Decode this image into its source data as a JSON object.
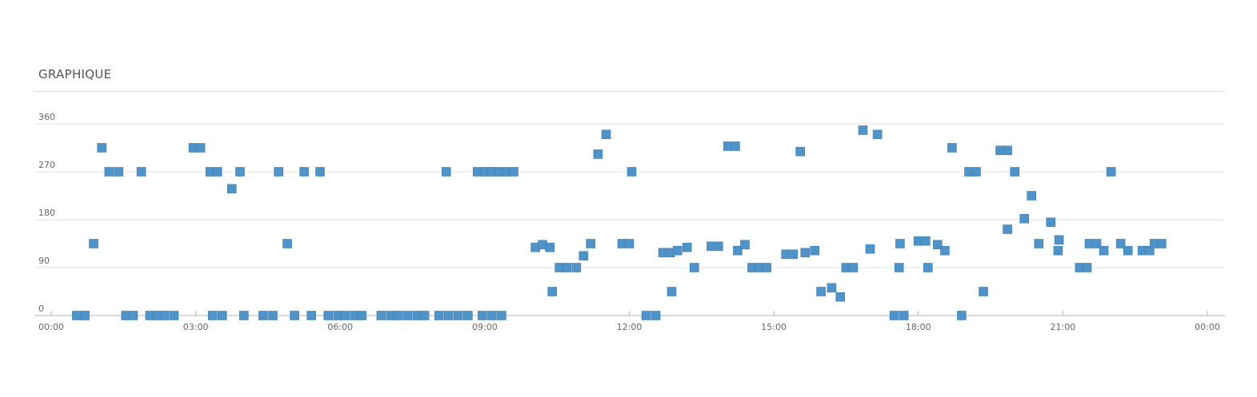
{
  "panel": {
    "title": "GRAPHIQUE"
  },
  "colors": {
    "marker": "#4f93c8",
    "marker_edge": "#3e7fb3",
    "grid": "#e1e1e1",
    "axis": "#b5b5b5"
  },
  "chart_data": {
    "type": "scatter",
    "title": "GRAPHIQUE",
    "xlabel": "",
    "ylabel": "",
    "x_unit": "hours",
    "xlim": [
      0,
      24
    ],
    "ylim": [
      0,
      360
    ],
    "x_ticks": [
      0,
      3,
      6,
      9,
      12,
      15,
      18,
      21,
      24
    ],
    "x_tick_labels": [
      "00:00",
      "03:00",
      "06:00",
      "09:00",
      "12:00",
      "15:00",
      "18:00",
      "21:00",
      "00:00"
    ],
    "y_ticks": [
      0,
      90,
      180,
      270,
      360
    ],
    "y_tick_labels": [
      "0",
      "90",
      "180",
      "270",
      "360"
    ],
    "grid": "horizontal",
    "series": [
      {
        "points": [
          [
            0.53,
            0
          ],
          [
            0.7,
            0
          ],
          [
            1.55,
            0
          ],
          [
            1.7,
            0
          ],
          [
            2.05,
            0
          ],
          [
            2.2,
            0
          ],
          [
            2.35,
            0
          ],
          [
            2.55,
            0
          ],
          [
            3.35,
            0
          ],
          [
            3.55,
            0
          ],
          [
            4.0,
            0
          ],
          [
            4.4,
            0
          ],
          [
            4.6,
            0
          ],
          [
            5.05,
            0
          ],
          [
            5.4,
            0
          ],
          [
            5.75,
            0
          ],
          [
            5.95,
            0
          ],
          [
            6.1,
            0
          ],
          [
            6.3,
            0
          ],
          [
            6.45,
            0
          ],
          [
            6.85,
            0
          ],
          [
            7.05,
            0
          ],
          [
            7.2,
            0
          ],
          [
            7.4,
            0
          ],
          [
            7.6,
            0
          ],
          [
            7.75,
            0
          ],
          [
            8.05,
            0
          ],
          [
            8.25,
            0
          ],
          [
            8.45,
            0
          ],
          [
            8.65,
            0
          ],
          [
            8.95,
            0
          ],
          [
            9.15,
            0
          ],
          [
            9.35,
            0
          ],
          [
            12.35,
            0
          ],
          [
            12.55,
            0
          ],
          [
            17.5,
            0
          ],
          [
            17.7,
            0
          ],
          [
            18.9,
            0
          ],
          [
            0.88,
            135
          ],
          [
            1.05,
            315
          ],
          [
            1.2,
            270
          ],
          [
            1.4,
            270
          ],
          [
            1.87,
            270
          ],
          [
            2.95,
            315
          ],
          [
            3.1,
            315
          ],
          [
            3.3,
            270
          ],
          [
            3.45,
            270
          ],
          [
            3.75,
            238
          ],
          [
            3.92,
            270
          ],
          [
            4.72,
            270
          ],
          [
            4.9,
            135
          ],
          [
            5.25,
            270
          ],
          [
            5.58,
            270
          ],
          [
            8.2,
            270
          ],
          [
            8.85,
            270
          ],
          [
            9.0,
            270
          ],
          [
            9.15,
            270
          ],
          [
            9.3,
            270
          ],
          [
            9.45,
            270
          ],
          [
            9.6,
            270
          ],
          [
            10.05,
            128
          ],
          [
            10.2,
            133
          ],
          [
            10.35,
            128
          ],
          [
            10.4,
            45
          ],
          [
            10.55,
            90
          ],
          [
            10.7,
            90
          ],
          [
            10.9,
            90
          ],
          [
            11.05,
            112
          ],
          [
            11.2,
            135
          ],
          [
            11.35,
            303
          ],
          [
            11.52,
            340
          ],
          [
            11.85,
            135
          ],
          [
            12.0,
            135
          ],
          [
            12.05,
            270
          ],
          [
            12.7,
            118
          ],
          [
            12.85,
            118
          ],
          [
            12.88,
            45
          ],
          [
            13.0,
            122
          ],
          [
            13.2,
            128
          ],
          [
            13.35,
            90
          ],
          [
            13.7,
            130
          ],
          [
            13.85,
            130
          ],
          [
            14.05,
            318
          ],
          [
            14.2,
            318
          ],
          [
            14.25,
            122
          ],
          [
            14.4,
            133
          ],
          [
            14.55,
            90
          ],
          [
            14.7,
            90
          ],
          [
            14.85,
            90
          ],
          [
            15.25,
            115
          ],
          [
            15.4,
            115
          ],
          [
            15.55,
            308
          ],
          [
            15.65,
            118
          ],
          [
            15.85,
            122
          ],
          [
            15.98,
            45
          ],
          [
            16.2,
            52
          ],
          [
            16.38,
            35
          ],
          [
            16.5,
            90
          ],
          [
            16.65,
            90
          ],
          [
            16.85,
            348
          ],
          [
            17.0,
            125
          ],
          [
            17.15,
            340
          ],
          [
            17.6,
            90
          ],
          [
            17.62,
            135
          ],
          [
            18.0,
            140
          ],
          [
            18.15,
            140
          ],
          [
            18.2,
            90
          ],
          [
            18.4,
            133
          ],
          [
            18.55,
            122
          ],
          [
            18.7,
            315
          ],
          [
            19.05,
            270
          ],
          [
            19.2,
            270
          ],
          [
            19.35,
            45
          ],
          [
            19.7,
            310
          ],
          [
            19.85,
            310
          ],
          [
            19.85,
            162
          ],
          [
            20.0,
            270
          ],
          [
            20.2,
            182
          ],
          [
            20.35,
            225
          ],
          [
            20.5,
            135
          ],
          [
            20.75,
            175
          ],
          [
            20.9,
            122
          ],
          [
            20.92,
            142
          ],
          [
            21.35,
            90
          ],
          [
            21.5,
            90
          ],
          [
            21.55,
            135
          ],
          [
            21.7,
            135
          ],
          [
            21.85,
            122
          ],
          [
            22.0,
            270
          ],
          [
            22.2,
            135
          ],
          [
            22.35,
            122
          ],
          [
            22.65,
            122
          ],
          [
            22.8,
            122
          ],
          [
            22.9,
            135
          ],
          [
            23.05,
            135
          ]
        ]
      }
    ]
  }
}
